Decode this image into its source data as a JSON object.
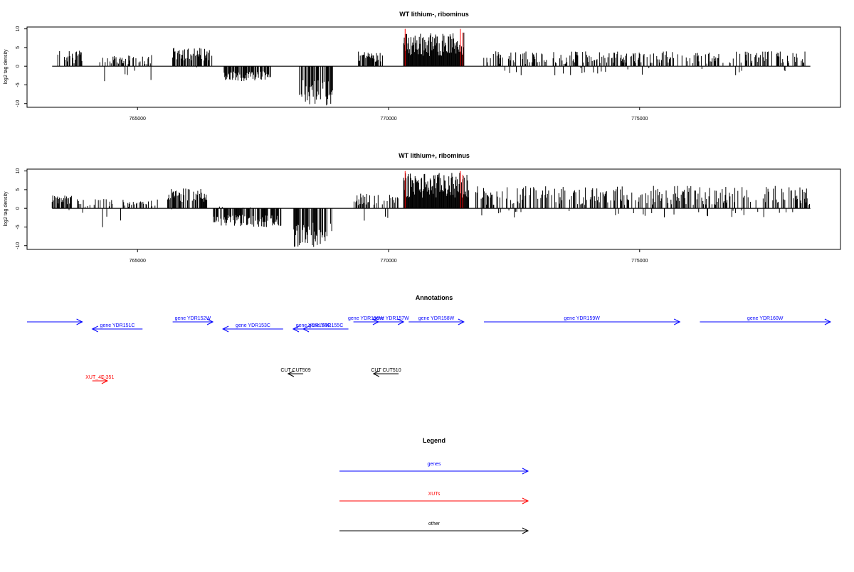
{
  "colors": {
    "gene": "#0000ff",
    "xut": "#ff0000",
    "other": "#000000",
    "signal": "#000000",
    "highlight": "#ff0000"
  },
  "chart_data": [
    {
      "type": "bar",
      "title": "WT lithium-, ribominus",
      "ylabel": "log2 tag density",
      "xlim": [
        762800,
        779000
      ],
      "ylim": [
        -11,
        10.5
      ],
      "x_ticks": [
        765000,
        770000,
        775000
      ],
      "x_tick_labels": [
        "765000",
        "770000",
        "775000"
      ],
      "y_ticks": [
        10,
        5,
        0,
        -5,
        -10
      ],
      "y_tick_labels": [
        "10",
        "5",
        "0",
        "-5",
        "-10"
      ],
      "baseline_range": [
        763300,
        778400
      ],
      "segments": [
        {
          "start": 763400,
          "end": 763900,
          "min": -2.5,
          "max": 4.5
        },
        {
          "start": 764200,
          "end": 765300,
          "min": -4.5,
          "max": 3.0
        },
        {
          "start": 765700,
          "end": 766500,
          "min": -0.5,
          "max": 5.0
        },
        {
          "start": 766700,
          "end": 767700,
          "min": -4.0,
          "max": 0.5
        },
        {
          "start": 768200,
          "end": 768900,
          "min": -10.5,
          "max": 0.0
        },
        {
          "start": 769400,
          "end": 769900,
          "min": -1.0,
          "max": 4.0
        },
        {
          "start": 770300,
          "end": 771500,
          "min": 0.0,
          "max": 9.0
        },
        {
          "start": 771800,
          "end": 778300,
          "min": -2.5,
          "max": 4.0
        }
      ],
      "highlights": [
        {
          "x": 770330,
          "max": 10
        },
        {
          "x": 771430,
          "max": 10
        },
        {
          "x": 771480,
          "max": 9
        }
      ]
    },
    {
      "type": "bar",
      "title": "WT lithium+, ribominus",
      "ylabel": "log2 tag density",
      "xlim": [
        762800,
        779000
      ],
      "ylim": [
        -11,
        10.5
      ],
      "x_ticks": [
        765000,
        770000,
        775000
      ],
      "x_tick_labels": [
        "765000",
        "770000",
        "775000"
      ],
      "y_ticks": [
        10,
        5,
        0,
        -5,
        -10
      ],
      "y_tick_labels": [
        "10",
        "5",
        "0",
        "-5",
        "-10"
      ],
      "baseline_range": [
        763300,
        778400
      ],
      "segments": [
        {
          "start": 763300,
          "end": 763700,
          "min": -1.0,
          "max": 3.5
        },
        {
          "start": 763800,
          "end": 765400,
          "min": -5.5,
          "max": 2.5
        },
        {
          "start": 765600,
          "end": 766400,
          "min": -0.5,
          "max": 5.5
        },
        {
          "start": 766500,
          "end": 767900,
          "min": -5.0,
          "max": 0.5
        },
        {
          "start": 768100,
          "end": 768900,
          "min": -10.5,
          "max": 0.0
        },
        {
          "start": 769300,
          "end": 770200,
          "min": -3.5,
          "max": 4.0
        },
        {
          "start": 770300,
          "end": 771600,
          "min": 0.0,
          "max": 9.5
        },
        {
          "start": 771700,
          "end": 778400,
          "min": -2.5,
          "max": 6.0
        }
      ],
      "highlights": [
        {
          "x": 770330,
          "max": 10
        },
        {
          "x": 771430,
          "max": 10
        },
        {
          "x": 771480,
          "max": 9
        }
      ]
    }
  ],
  "annotations": {
    "title": "Annotations",
    "features": [
      {
        "label": "",
        "type": "gene",
        "strand": "+",
        "start": 762800,
        "end": 763900,
        "row": 0
      },
      {
        "label": "gene YDR151C",
        "type": "gene",
        "strand": "-",
        "start": 764100,
        "end": 765100,
        "row": 1
      },
      {
        "label": "gene YDR152W",
        "type": "gene",
        "strand": "+",
        "start": 765700,
        "end": 766500,
        "row": 0
      },
      {
        "label": "gene YDR153C",
        "type": "gene",
        "strand": "-",
        "start": 766700,
        "end": 767900,
        "row": 1
      },
      {
        "label": "gene YDR154C",
        "type": "gene",
        "strand": "-",
        "start": 768100,
        "end": 768900,
        "row": 1
      },
      {
        "label": "gene YDR155C",
        "type": "gene",
        "strand": "-",
        "start": 768300,
        "end": 769200,
        "row": 1
      },
      {
        "label": "gene YDR156W",
        "type": "gene",
        "strand": "+",
        "start": 769300,
        "end": 769800,
        "row": 0
      },
      {
        "label": "gene YDR157W",
        "type": "gene",
        "strand": "+",
        "start": 769800,
        "end": 770300,
        "row": 0
      },
      {
        "label": "gene YDR158W",
        "type": "gene",
        "strand": "+",
        "start": 770400,
        "end": 771500,
        "row": 0
      },
      {
        "label": "gene YDR159W",
        "type": "gene",
        "strand": "+",
        "start": 771900,
        "end": 775800,
        "row": 0
      },
      {
        "label": "gene YDR160W",
        "type": "gene",
        "strand": "+",
        "start": 776200,
        "end": 778800,
        "row": 0
      },
      {
        "label": "XUT_4F-351",
        "type": "xut",
        "strand": "+",
        "start": 764100,
        "end": 764400,
        "row": 2
      },
      {
        "label": "CUT CUT509",
        "type": "other",
        "strand": "-",
        "start": 768000,
        "end": 768300,
        "row": 3
      },
      {
        "label": "CUT CUT510",
        "type": "other",
        "strand": "-",
        "start": 769700,
        "end": 770200,
        "row": 3
      }
    ]
  },
  "legend": {
    "title": "Legend",
    "items": [
      {
        "label": "genes",
        "type": "gene"
      },
      {
        "label": "XUTs",
        "type": "xut"
      },
      {
        "label": "other",
        "type": "other"
      }
    ]
  }
}
